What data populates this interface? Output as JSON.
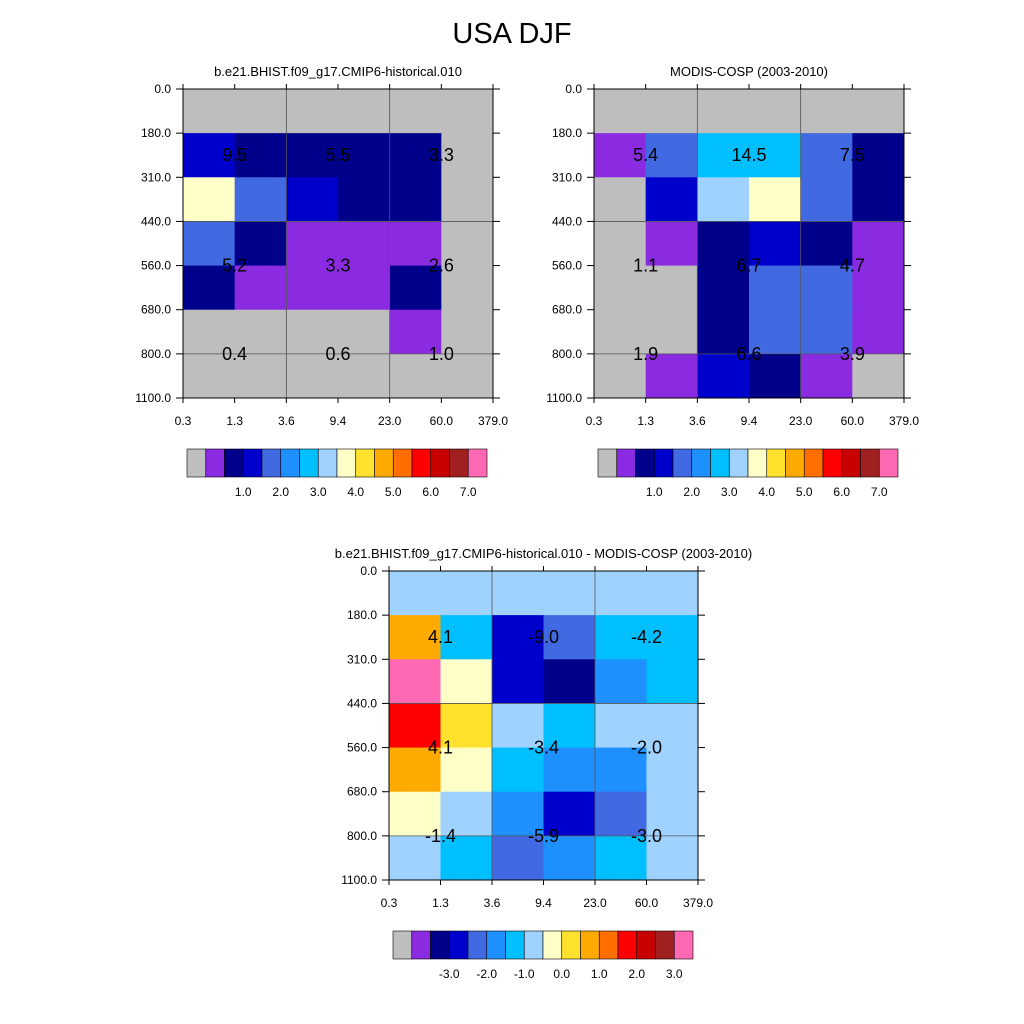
{
  "title": "USA DJF",
  "chart_data": [
    {
      "type": "heatmap",
      "title": "b.e21.BHIST.f09_g17.CMIP6-historical.010",
      "x_ticks": [
        "0.3",
        "1.3",
        "3.6",
        "9.4",
        "23.0",
        "60.0",
        "379.0"
      ],
      "y_ticks": [
        "0.0",
        "180.0",
        "310.0",
        "440.0",
        "560.0",
        "680.0",
        "800.0",
        "1100.0"
      ],
      "cells": [
        [
          "#bebebe",
          "#bebebe",
          "#bebebe",
          "#bebebe",
          "#bebebe",
          "#bebebe"
        ],
        [
          "#0000cd",
          "#00008b",
          "#00008b",
          "#00008b",
          "#00008b",
          "#bebebe"
        ],
        [
          "#ffffc8",
          "#4169e1",
          "#0000cd",
          "#00008b",
          "#00008b",
          "#bebebe"
        ],
        [
          "#4169e1",
          "#00008b",
          "#8a2be2",
          "#8a2be2",
          "#8a2be2",
          "#bebebe"
        ],
        [
          "#00008b",
          "#8a2be2",
          "#8a2be2",
          "#8a2be2",
          "#00008b",
          "#bebebe"
        ],
        [
          "#bebebe",
          "#bebebe",
          "#bebebe",
          "#bebebe",
          "#8a2be2",
          "#bebebe"
        ],
        [
          "#bebebe",
          "#bebebe",
          "#bebebe",
          "#bebebe",
          "#bebebe",
          "#bebebe"
        ]
      ],
      "annotations": [
        [
          "9.5",
          "5.5",
          "3.3"
        ],
        [
          "5.2",
          "3.3",
          "2.6"
        ],
        [
          "0.4",
          "0.6",
          "1.0"
        ]
      ],
      "colorbar": {
        "colors": [
          "#bebebe",
          "#8a2be2",
          "#00008b",
          "#0000cd",
          "#4169e1",
          "#1e90ff",
          "#00bfff",
          "#a0d2ff",
          "#ffffc8",
          "#ffe12e",
          "#ffaa00",
          "#ff6e00",
          "#ff0000",
          "#c80000",
          "#a02020",
          "#ff69b4"
        ],
        "labels": [
          "1.0",
          "2.0",
          "3.0",
          "4.0",
          "5.0",
          "6.0",
          "7.0"
        ]
      }
    },
    {
      "type": "heatmap",
      "title": "MODIS-COSP (2003-2010)",
      "x_ticks": [
        "0.3",
        "1.3",
        "3.6",
        "9.4",
        "23.0",
        "60.0",
        "379.0"
      ],
      "y_ticks": [
        "0.0",
        "180.0",
        "310.0",
        "440.0",
        "560.0",
        "680.0",
        "800.0",
        "1100.0"
      ],
      "cells": [
        [
          "#bebebe",
          "#bebebe",
          "#bebebe",
          "#bebebe",
          "#bebebe",
          "#bebebe"
        ],
        [
          "#8a2be2",
          "#4169e1",
          "#00bfff",
          "#00bfff",
          "#4169e1",
          "#00008b"
        ],
        [
          "#bebebe",
          "#0000cd",
          "#a0d2ff",
          "#ffffc8",
          "#4169e1",
          "#00008b"
        ],
        [
          "#bebebe",
          "#8a2be2",
          "#00008b",
          "#0000cd",
          "#00008b",
          "#8a2be2"
        ],
        [
          "#bebebe",
          "#bebebe",
          "#00008b",
          "#4169e1",
          "#4169e1",
          "#8a2be2"
        ],
        [
          "#bebebe",
          "#bebebe",
          "#00008b",
          "#4169e1",
          "#4169e1",
          "#8a2be2"
        ],
        [
          "#bebebe",
          "#8a2be2",
          "#0000cd",
          "#00008b",
          "#8a2be2",
          "#bebebe"
        ]
      ],
      "annotations": [
        [
          "5.4",
          "14.5",
          "7.5"
        ],
        [
          "1.1",
          "6.7",
          "4.7"
        ],
        [
          "1.9",
          "6.6",
          "3.9"
        ]
      ],
      "colorbar": {
        "colors": [
          "#bebebe",
          "#8a2be2",
          "#00008b",
          "#0000cd",
          "#4169e1",
          "#1e90ff",
          "#00bfff",
          "#a0d2ff",
          "#ffffc8",
          "#ffe12e",
          "#ffaa00",
          "#ff6e00",
          "#ff0000",
          "#c80000",
          "#a02020",
          "#ff69b4"
        ],
        "labels": [
          "1.0",
          "2.0",
          "3.0",
          "4.0",
          "5.0",
          "6.0",
          "7.0"
        ]
      }
    },
    {
      "type": "heatmap",
      "title": "b.e21.BHIST.f09_g17.CMIP6-historical.010 - MODIS-COSP (2003-2010)",
      "x_ticks": [
        "0.3",
        "1.3",
        "3.6",
        "9.4",
        "23.0",
        "60.0",
        "379.0"
      ],
      "y_ticks": [
        "0.0",
        "180.0",
        "310.0",
        "440.0",
        "560.0",
        "680.0",
        "800.0",
        "1100.0"
      ],
      "cells": [
        [
          "#a0d2ff",
          "#a0d2ff",
          "#a0d2ff",
          "#a0d2ff",
          "#a0d2ff",
          "#a0d2ff"
        ],
        [
          "#ffaa00",
          "#00bfff",
          "#0000cd",
          "#4169e1",
          "#00bfff",
          "#00bfff"
        ],
        [
          "#ff69b4",
          "#ffffc8",
          "#0000cd",
          "#00008b",
          "#1e90ff",
          "#00bfff"
        ],
        [
          "#ff0000",
          "#ffe12e",
          "#a0d2ff",
          "#00bfff",
          "#a0d2ff",
          "#a0d2ff"
        ],
        [
          "#ffaa00",
          "#ffffc8",
          "#00bfff",
          "#1e90ff",
          "#1e90ff",
          "#a0d2ff"
        ],
        [
          "#ffffc8",
          "#a0d2ff",
          "#1e90ff",
          "#0000cd",
          "#4169e1",
          "#a0d2ff"
        ],
        [
          "#a0d2ff",
          "#00bfff",
          "#4169e1",
          "#1e90ff",
          "#00bfff",
          "#a0d2ff"
        ]
      ],
      "annotations": [
        [
          "4.1",
          "-9.0",
          "-4.2"
        ],
        [
          "4.1",
          "-3.4",
          "-2.0"
        ],
        [
          "-1.4",
          "-5.9",
          "-3.0"
        ]
      ],
      "colorbar": {
        "colors": [
          "#bebebe",
          "#8a2be2",
          "#00008b",
          "#0000cd",
          "#4169e1",
          "#1e90ff",
          "#00bfff",
          "#a0d2ff",
          "#ffffc8",
          "#ffe12e",
          "#ffaa00",
          "#ff6e00",
          "#ff0000",
          "#c80000",
          "#a02020",
          "#ff69b4"
        ],
        "labels": [
          "-3.0",
          "-2.0",
          "-1.0",
          "0.0",
          "1.0",
          "2.0",
          "3.0"
        ]
      }
    }
  ]
}
